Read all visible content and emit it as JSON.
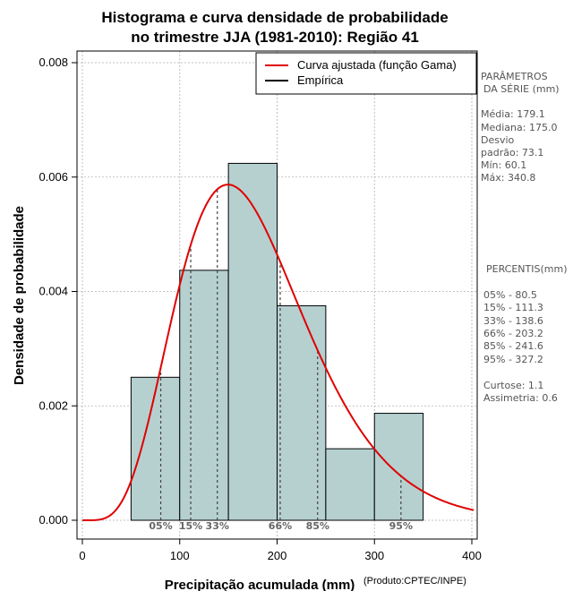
{
  "chart_data": {
    "type": "histogram",
    "title_line1": "Histograma e curva densidade de probabilidade",
    "title_line2": "no trimestre JJA (1981-2010): Região 41",
    "xlabel": "Precipitação acumulada (mm)",
    "ylabel": "Densidade de probabilidade",
    "credit": "(Produto:CPTEC/INPE)",
    "xlim": [
      0,
      400
    ],
    "ylim": [
      0,
      0.008
    ],
    "x_ticks": [
      0,
      100,
      200,
      300,
      400
    ],
    "x_tick_labels": [
      "0",
      "100",
      "200",
      "300",
      "400"
    ],
    "y_ticks": [
      0,
      0.002,
      0.004,
      0.006,
      0.008
    ],
    "y_tick_labels": [
      "0.000",
      "0.002",
      "0.004",
      "0.006",
      "0.008"
    ],
    "grid": true,
    "bins": [
      {
        "x0": 50,
        "x1": 100,
        "density": 0.0025
      },
      {
        "x0": 100,
        "x1": 150,
        "density": 0.00437
      },
      {
        "x0": 150,
        "x1": 200,
        "density": 0.00624
      },
      {
        "x0": 200,
        "x1": 250,
        "density": 0.00375
      },
      {
        "x0": 250,
        "x1": 300,
        "density": 0.00125
      },
      {
        "x0": 300,
        "x1": 350,
        "density": 0.00187
      }
    ],
    "bar_color": "#b6d0d0",
    "gamma_fit": {
      "shape": 6.0,
      "scale": 29.9,
      "color": "#e00000"
    },
    "legend": [
      {
        "label": "Curva ajustada (função Gama)",
        "color": "#e00000"
      },
      {
        "label": "Empírica",
        "color": "#000000"
      }
    ],
    "legend_position": "top-right",
    "percentile_markers": [
      {
        "label": "05%",
        "value": 80.5
      },
      {
        "label": "15%",
        "value": 111.3
      },
      {
        "label": "33%",
        "value": 138.6
      },
      {
        "label": "66%",
        "value": 203.2
      },
      {
        "label": "85%",
        "value": 241.6
      },
      {
        "label": "95%",
        "value": 327.2
      }
    ]
  },
  "side_panel": {
    "params_title1": "PARÂMETROS",
    "params_title2": "DA SÉRIE (mm)",
    "media": "Média:  179.1",
    "mediana": "Mediana:  175.0",
    "desvio1": "Desvio",
    "desvio2": "padrão:  73.1",
    "min": "Mín:  60.1",
    "max": "Máx:  340.8",
    "percentis_title": "PERCENTIS(mm)",
    "p05": "05% -   80.5",
    "p15": "15% -  111.3",
    "p33": "33% -  138.6",
    "p66": "66% -  203.2",
    "p85": "85% -  241.6",
    "p95": "95% -  327.2",
    "curtose": "Curtose:  1.1",
    "assimetria": "Assimetria:  0.6"
  }
}
